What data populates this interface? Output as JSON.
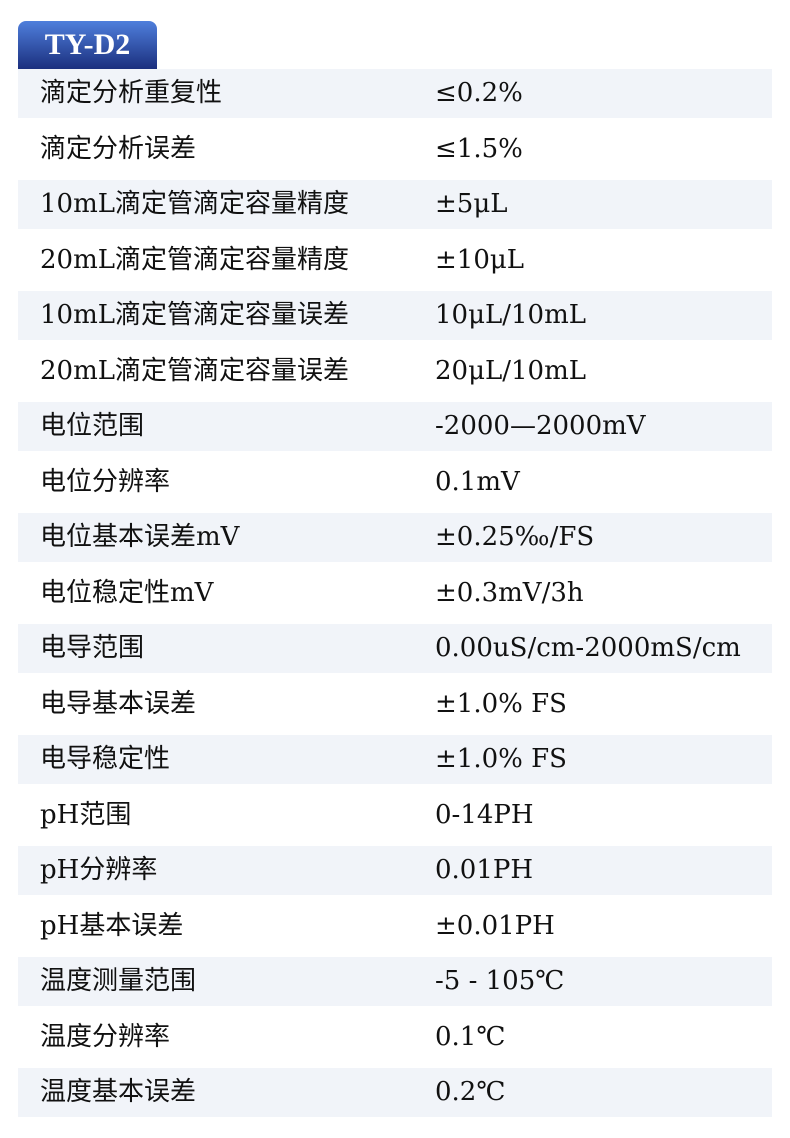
{
  "title": "TY-D2",
  "rows": [
    {
      "label": "滴定分析重复性",
      "value": "≤0.2%"
    },
    {
      "label": "滴定分析误差",
      "value": "≤1.5%"
    },
    {
      "label": "10mL滴定管滴定容量精度",
      "value": "±5μL"
    },
    {
      "label": "20mL滴定管滴定容量精度",
      "value": "±10μL"
    },
    {
      "label": "10mL滴定管滴定容量误差",
      "value": "10μL/10mL"
    },
    {
      "label": "20mL滴定管滴定容量误差",
      "value": "20μL/10mL"
    },
    {
      "label": "电位范围",
      "value": "-2000—2000mV"
    },
    {
      "label": "电位分辨率",
      "value": "0.1mV"
    },
    {
      "label": "电位基本误差mV",
      "value": "±0.25‰/FS"
    },
    {
      "label": "电位稳定性mV",
      "value": "±0.3mV/3h"
    },
    {
      "label": "电导范围",
      "value": "0.00uS/cm-2000mS/cm"
    },
    {
      "label": "电导基本误差",
      "value": "±1.0% FS"
    },
    {
      "label": "电导稳定性",
      "value": "±1.0% FS"
    },
    {
      "label": "pH范围",
      "value": "0-14PH"
    },
    {
      "label": "pH分辨率",
      "value": "0.01PH"
    },
    {
      "label": "pH基本误差",
      "value": "±0.01PH"
    },
    {
      "label": "温度测量范围",
      "value": "-5 - 105℃"
    },
    {
      "label": "温度分辨率",
      "value": "0.1℃"
    },
    {
      "label": "温度基本误差",
      "value": "0.2℃"
    }
  ],
  "colors": {
    "header_top": "#4f7fdc",
    "header_bottom": "#1b2f7e",
    "row_shade": "#f1f4f9"
  }
}
